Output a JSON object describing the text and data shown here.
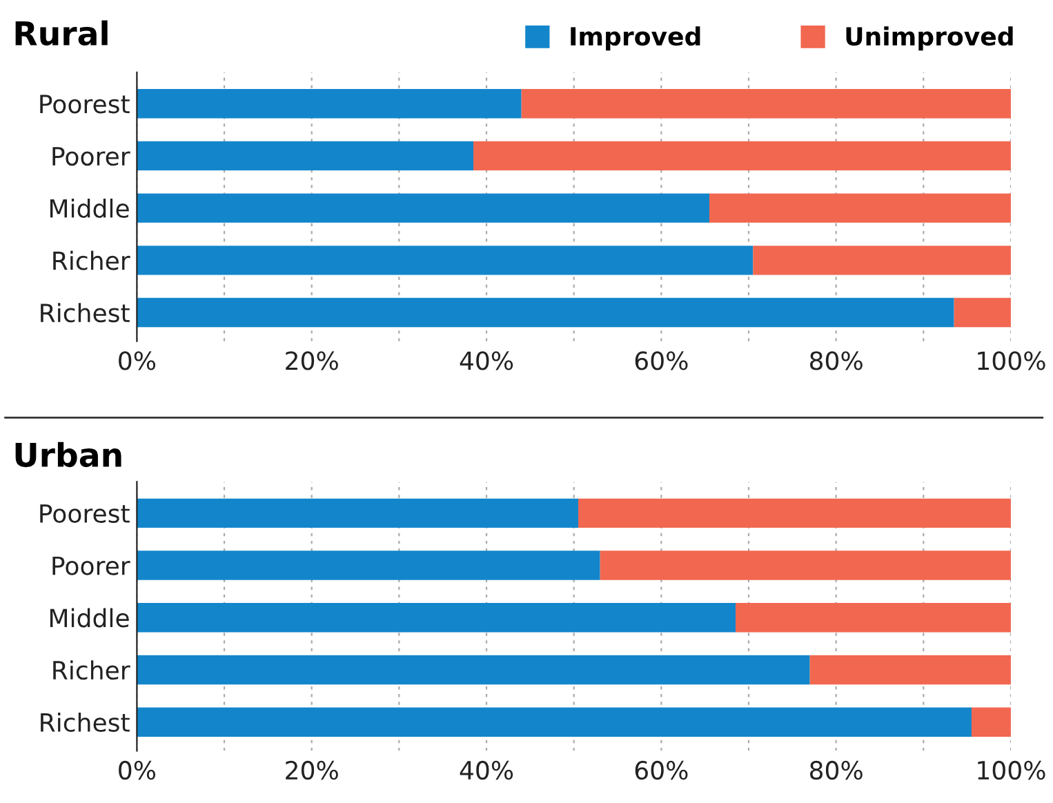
{
  "chart_data": [
    {
      "type": "bar",
      "title": "Rural",
      "orientation": "horizontal",
      "stacked": true,
      "categories": [
        "Poorest",
        "Poorer",
        "Middle",
        "Richer",
        "Richest"
      ],
      "series": [
        {
          "name": "Improved",
          "color": "#1386cb",
          "values": [
            44,
            38.5,
            65.5,
            70.5,
            93.5
          ]
        },
        {
          "name": "Unimproved",
          "color": "#f26750",
          "values": [
            56,
            61.5,
            34.5,
            29.5,
            6.5
          ]
        }
      ],
      "xlim": [
        0,
        100
      ],
      "xticks": [
        {
          "value": 0,
          "label": "0%"
        },
        {
          "value": 10,
          "label": null
        },
        {
          "value": 20,
          "label": "20%"
        },
        {
          "value": 30,
          "label": null
        },
        {
          "value": 40,
          "label": "40%"
        },
        {
          "value": 50,
          "label": null
        },
        {
          "value": 60,
          "label": "60%"
        },
        {
          "value": 70,
          "label": null
        },
        {
          "value": 80,
          "label": "80%"
        },
        {
          "value": 90,
          "label": null
        },
        {
          "value": 100,
          "label": "100%"
        }
      ],
      "grid": "x",
      "legend": "top right"
    },
    {
      "type": "bar",
      "title": "Urban",
      "orientation": "horizontal",
      "stacked": true,
      "categories": [
        "Poorest",
        "Poorer",
        "Middle",
        "Richer",
        "Richest"
      ],
      "series": [
        {
          "color": "#1386cb",
          "values": [
            50.5,
            53,
            68.5,
            77,
            95.5
          ]
        },
        {
          "color": "#f26750",
          "values": [
            49.5,
            47,
            31.5,
            23,
            4.5
          ]
        }
      ],
      "xlim": [
        0,
        100
      ],
      "xticks": [
        {
          "value": 0,
          "label": "0%"
        },
        {
          "value": 10,
          "label": null
        },
        {
          "value": 20,
          "label": "20%"
        },
        {
          "value": 30,
          "label": null
        },
        {
          "value": 40,
          "label": "40%"
        },
        {
          "value": 50,
          "label": null
        },
        {
          "value": 60,
          "label": "60%"
        },
        {
          "value": 70,
          "label": null
        },
        {
          "value": 80,
          "label": "80%"
        },
        {
          "value": 90,
          "label": null
        },
        {
          "value": 100,
          "label": "100%"
        }
      ],
      "grid": "x"
    }
  ]
}
